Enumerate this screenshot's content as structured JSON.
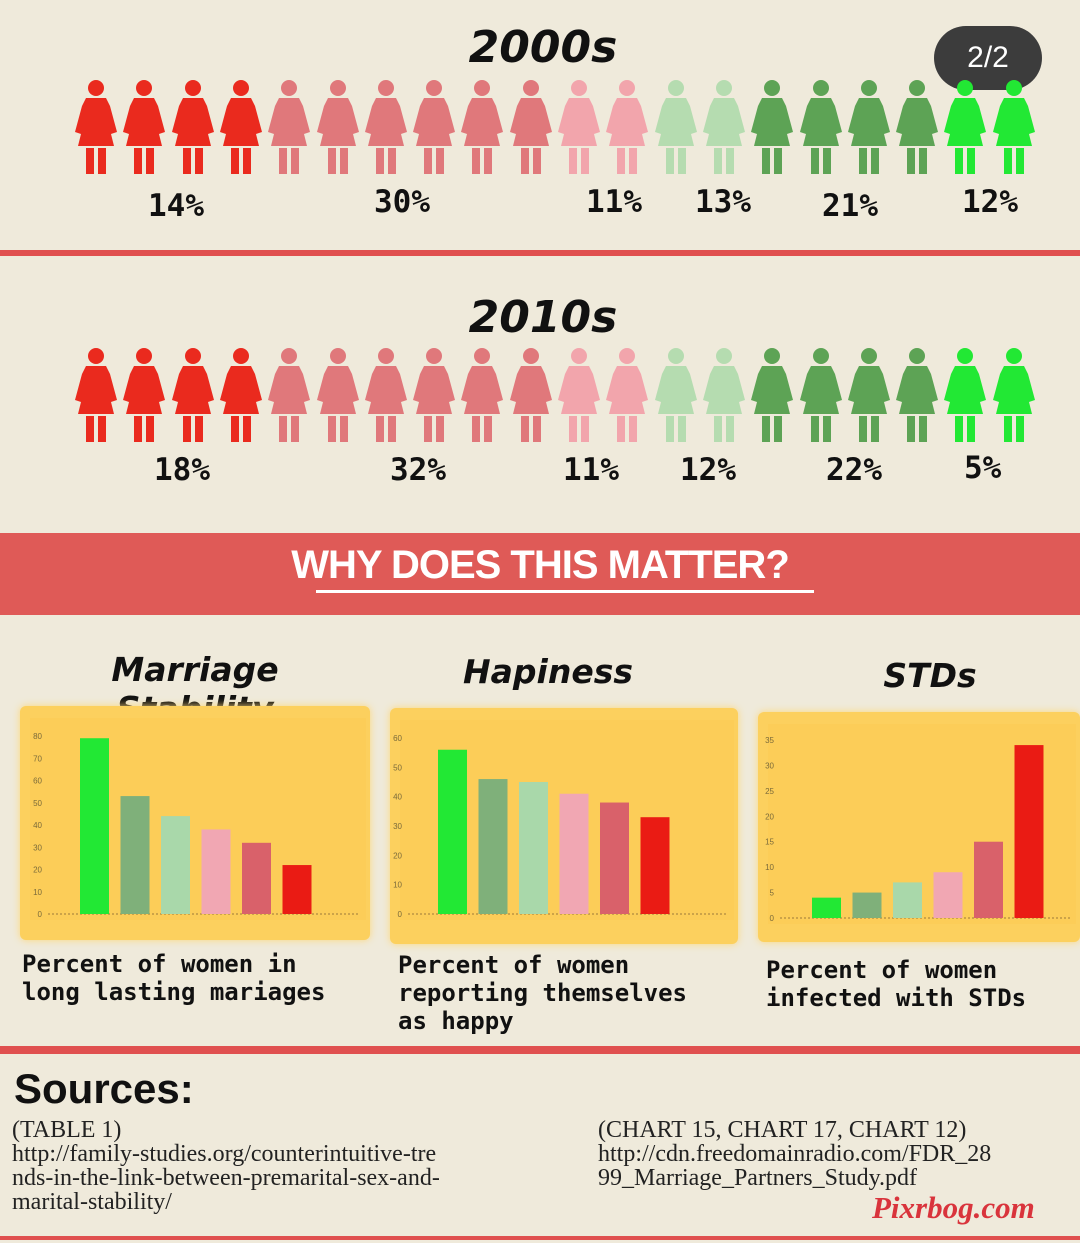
{
  "badge": "2/2",
  "decades": [
    {
      "title": "2000s",
      "icon_colors": [
        "#ea2a1e",
        "#ea2a1e",
        "#ea2a1e",
        "#ea2a1e",
        "#e0787b",
        "#e0787b",
        "#e0787b",
        "#e0787b",
        "#e0787b",
        "#e0787b",
        "#f2a5ac",
        "#f2a5ac",
        "#b5dcb0",
        "#b5dcb0",
        "#5da355",
        "#5da355",
        "#5da355",
        "#5da355",
        "#22e834",
        "#22e834"
      ],
      "labels": [
        "14%",
        "30%",
        "11%",
        "13%",
        "21%",
        "12%"
      ]
    },
    {
      "title": "2010s",
      "icon_colors": [
        "#ea2a1e",
        "#ea2a1e",
        "#ea2a1e",
        "#ea2a1e",
        "#e0787b",
        "#e0787b",
        "#e0787b",
        "#e0787b",
        "#e0787b",
        "#e0787b",
        "#f2a5ac",
        "#f2a5ac",
        "#b5dcb0",
        "#b5dcb0",
        "#5da355",
        "#5da355",
        "#5da355",
        "#5da355",
        "#22e834",
        "#22e834"
      ],
      "labels": [
        "18%",
        "32%",
        "11%",
        "12%",
        "22%",
        "5%"
      ]
    }
  ],
  "banner": "WHY DOES THIS MATTER?",
  "bar_colors": [
    "#22e834",
    "#7fb07a",
    "#a9d8aa",
    "#f1a7b3",
    "#d9616a",
    "#ea1b14"
  ],
  "chart_data": [
    {
      "type": "bar",
      "title": "Marriage Stability",
      "caption": "Percent of women in long lasting mariages",
      "categories": [
        "",
        "",
        "",
        "",
        "",
        ""
      ],
      "values": [
        79,
        53,
        44,
        38,
        32,
        22
      ],
      "ylim": [
        0,
        80
      ],
      "yticks": [
        "0",
        "10",
        "20",
        "30",
        "40",
        "50",
        "60",
        "70",
        "80"
      ]
    },
    {
      "type": "bar",
      "title": "Hapiness",
      "caption": "Percent of women reporting themselves as happy",
      "categories": [
        "",
        "",
        "",
        "",
        "",
        ""
      ],
      "values": [
        56,
        46,
        45,
        41,
        38,
        33
      ],
      "ylim": [
        0,
        60
      ],
      "yticks": [
        "0",
        "10",
        "20",
        "30",
        "40",
        "50",
        "60"
      ]
    },
    {
      "type": "bar",
      "title": "STDs",
      "caption": "Percent of women infected with STDs",
      "categories": [
        "",
        "",
        "",
        "",
        "",
        ""
      ],
      "values": [
        4,
        5,
        7,
        9,
        15,
        34
      ],
      "ylim": [
        0,
        35
      ],
      "yticks": [
        "0",
        "5",
        "10",
        "15",
        "20",
        "25",
        "30",
        "35"
      ]
    }
  ],
  "sources": {
    "heading": "Sources:",
    "left": [
      "(TABLE 1)",
      "http://family-studies.org/counterintuitive-tre",
      "nds-in-the-link-between-premarital-sex-and-",
      "marital-stability/"
    ],
    "right": [
      "(CHART 15, CHART 17, CHART 12)",
      "http://cdn.freedomainradio.com/FDR_28",
      "99_Marriage_Partners_Study.pdf"
    ]
  },
  "watermark": "Pixrbog.com"
}
